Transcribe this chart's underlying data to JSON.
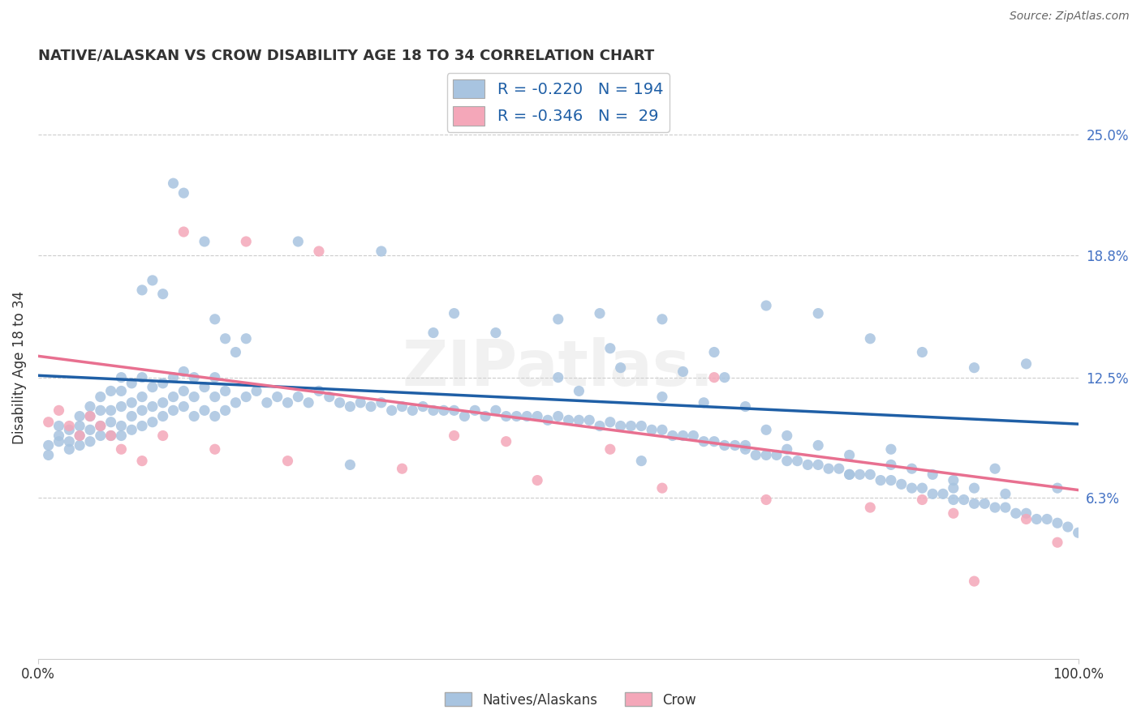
{
  "title": "NATIVE/ALASKAN VS CROW DISABILITY AGE 18 TO 34 CORRELATION CHART",
  "source": "Source: ZipAtlas.com",
  "ylabel": "Disability Age 18 to 34",
  "xlim": [
    0.0,
    1.0
  ],
  "ylim": [
    -0.02,
    0.28
  ],
  "x_ticks": [
    0.0,
    1.0
  ],
  "x_tick_labels": [
    "0.0%",
    "100.0%"
  ],
  "y_ticks": [
    0.063,
    0.125,
    0.188,
    0.25
  ],
  "y_tick_labels": [
    "6.3%",
    "12.5%",
    "18.8%",
    "25.0%"
  ],
  "blue_R": -0.22,
  "blue_N": 194,
  "pink_R": -0.346,
  "pink_N": 29,
  "blue_color": "#a8c4e0",
  "pink_color": "#f4a7b9",
  "blue_line_color": "#1f5fa6",
  "pink_line_color": "#e87090",
  "legend_label_blue": "Natives/Alaskans",
  "legend_label_pink": "Crow",
  "watermark": "ZIPatlas.",
  "blue_scatter_x": [
    0.01,
    0.01,
    0.02,
    0.02,
    0.02,
    0.03,
    0.03,
    0.03,
    0.04,
    0.04,
    0.04,
    0.04,
    0.05,
    0.05,
    0.05,
    0.05,
    0.06,
    0.06,
    0.06,
    0.06,
    0.07,
    0.07,
    0.07,
    0.07,
    0.08,
    0.08,
    0.08,
    0.08,
    0.08,
    0.09,
    0.09,
    0.09,
    0.09,
    0.1,
    0.1,
    0.1,
    0.1,
    0.11,
    0.11,
    0.11,
    0.12,
    0.12,
    0.12,
    0.13,
    0.13,
    0.13,
    0.14,
    0.14,
    0.14,
    0.15,
    0.15,
    0.15,
    0.16,
    0.16,
    0.17,
    0.17,
    0.17,
    0.18,
    0.18,
    0.19,
    0.2,
    0.21,
    0.22,
    0.23,
    0.24,
    0.25,
    0.26,
    0.27,
    0.28,
    0.29,
    0.3,
    0.31,
    0.32,
    0.33,
    0.34,
    0.35,
    0.36,
    0.37,
    0.38,
    0.39,
    0.4,
    0.41,
    0.42,
    0.43,
    0.44,
    0.45,
    0.46,
    0.47,
    0.48,
    0.49,
    0.5,
    0.51,
    0.52,
    0.53,
    0.54,
    0.55,
    0.56,
    0.57,
    0.58,
    0.59,
    0.6,
    0.61,
    0.62,
    0.63,
    0.64,
    0.65,
    0.66,
    0.67,
    0.68,
    0.69,
    0.7,
    0.71,
    0.72,
    0.73,
    0.74,
    0.75,
    0.76,
    0.77,
    0.78,
    0.79,
    0.8,
    0.81,
    0.82,
    0.83,
    0.84,
    0.85,
    0.86,
    0.87,
    0.88,
    0.89,
    0.9,
    0.91,
    0.92,
    0.93,
    0.94,
    0.95,
    0.96,
    0.97,
    0.98,
    0.99,
    1.0,
    0.1,
    0.11,
    0.12,
    0.13,
    0.14,
    0.16,
    0.17,
    0.18,
    0.19,
    0.2,
    0.25,
    0.3,
    0.33,
    0.38,
    0.4,
    0.44,
    0.5,
    0.55,
    0.58,
    0.6,
    0.65,
    0.68,
    0.7,
    0.72,
    0.75,
    0.78,
    0.8,
    0.82,
    0.85,
    0.88,
    0.9,
    0.92,
    0.95,
    0.98,
    0.5,
    0.52,
    0.54,
    0.56,
    0.6,
    0.62,
    0.64,
    0.66,
    0.68,
    0.7,
    0.72,
    0.75,
    0.78,
    0.82,
    0.84,
    0.86,
    0.88,
    0.9,
    0.93
  ],
  "blue_scatter_y": [
    0.085,
    0.09,
    0.092,
    0.095,
    0.1,
    0.088,
    0.092,
    0.098,
    0.09,
    0.095,
    0.1,
    0.105,
    0.092,
    0.098,
    0.105,
    0.11,
    0.095,
    0.1,
    0.108,
    0.115,
    0.095,
    0.102,
    0.108,
    0.118,
    0.095,
    0.1,
    0.11,
    0.118,
    0.125,
    0.098,
    0.105,
    0.112,
    0.122,
    0.1,
    0.108,
    0.115,
    0.125,
    0.102,
    0.11,
    0.12,
    0.105,
    0.112,
    0.122,
    0.108,
    0.115,
    0.125,
    0.11,
    0.118,
    0.128,
    0.105,
    0.115,
    0.125,
    0.108,
    0.12,
    0.105,
    0.115,
    0.125,
    0.108,
    0.118,
    0.112,
    0.115,
    0.118,
    0.112,
    0.115,
    0.112,
    0.115,
    0.112,
    0.118,
    0.115,
    0.112,
    0.11,
    0.112,
    0.11,
    0.112,
    0.108,
    0.11,
    0.108,
    0.11,
    0.108,
    0.108,
    0.108,
    0.105,
    0.108,
    0.105,
    0.108,
    0.105,
    0.105,
    0.105,
    0.105,
    0.103,
    0.105,
    0.103,
    0.103,
    0.103,
    0.1,
    0.102,
    0.1,
    0.1,
    0.1,
    0.098,
    0.098,
    0.095,
    0.095,
    0.095,
    0.092,
    0.092,
    0.09,
    0.09,
    0.088,
    0.085,
    0.085,
    0.085,
    0.082,
    0.082,
    0.08,
    0.08,
    0.078,
    0.078,
    0.075,
    0.075,
    0.075,
    0.072,
    0.072,
    0.07,
    0.068,
    0.068,
    0.065,
    0.065,
    0.062,
    0.062,
    0.06,
    0.06,
    0.058,
    0.058,
    0.055,
    0.055,
    0.052,
    0.052,
    0.05,
    0.048,
    0.045,
    0.17,
    0.175,
    0.168,
    0.225,
    0.22,
    0.195,
    0.155,
    0.145,
    0.138,
    0.145,
    0.195,
    0.08,
    0.19,
    0.148,
    0.158,
    0.148,
    0.155,
    0.14,
    0.082,
    0.155,
    0.138,
    0.09,
    0.162,
    0.088,
    0.158,
    0.075,
    0.145,
    0.088,
    0.138,
    0.068,
    0.13,
    0.078,
    0.132,
    0.068,
    0.125,
    0.118,
    0.158,
    0.13,
    0.115,
    0.128,
    0.112,
    0.125,
    0.11,
    0.098,
    0.095,
    0.09,
    0.085,
    0.08,
    0.078,
    0.075,
    0.072,
    0.068,
    0.065
  ],
  "pink_scatter_x": [
    0.01,
    0.02,
    0.03,
    0.04,
    0.05,
    0.06,
    0.07,
    0.08,
    0.1,
    0.12,
    0.14,
    0.17,
    0.2,
    0.24,
    0.27,
    0.35,
    0.4,
    0.45,
    0.48,
    0.55,
    0.6,
    0.65,
    0.7,
    0.8,
    0.85,
    0.88,
    0.9,
    0.95,
    0.98
  ],
  "pink_scatter_y": [
    0.102,
    0.108,
    0.1,
    0.095,
    0.105,
    0.1,
    0.095,
    0.088,
    0.082,
    0.095,
    0.2,
    0.088,
    0.195,
    0.082,
    0.19,
    0.078,
    0.095,
    0.092,
    0.072,
    0.088,
    0.068,
    0.125,
    0.062,
    0.058,
    0.062,
    0.055,
    0.02,
    0.052,
    0.04
  ],
  "blue_line_x0": 0.0,
  "blue_line_x1": 1.0,
  "blue_line_y0": 0.126,
  "blue_line_y1": 0.101,
  "pink_line_x0": 0.0,
  "pink_line_x1": 1.0,
  "pink_line_y0": 0.136,
  "pink_line_y1": 0.067
}
